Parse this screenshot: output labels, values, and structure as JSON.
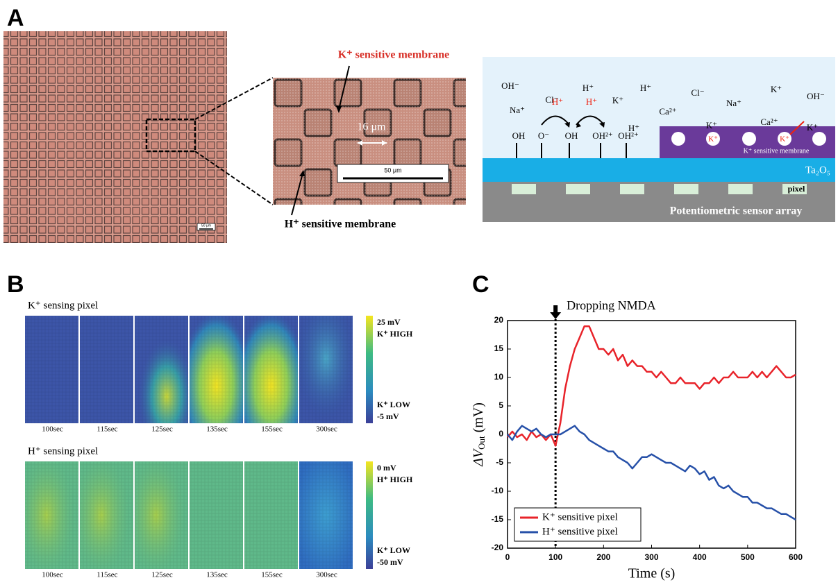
{
  "panel_a": {
    "label": "A",
    "overview_scale_bar": "50 μm",
    "inset": {
      "k_membrane": "K⁺ sensitive membrane",
      "h_membrane": "H⁺ sensitive membrane",
      "spacing": "16 μm",
      "scale_bar": "50 μm"
    },
    "schematic": {
      "ions": [
        "OH⁻",
        "Cl⁻",
        "H⁺",
        "K⁺",
        "H⁺",
        "Cl⁻",
        "Na⁺",
        "K⁺",
        "OH⁻",
        "Na⁺",
        "Ca²⁺",
        "H⁺",
        "K⁺",
        "Ca²⁺",
        "K⁺"
      ],
      "exchanged_ions": [
        "H⁺",
        "H⁺"
      ],
      "surface_groups": [
        "OH",
        "O⁻",
        "OH",
        "OH²⁺",
        "OH²⁺"
      ],
      "membrane_ions": [
        "K⁺",
        "K⁺"
      ],
      "membrane": "K⁺ sensitive membrane",
      "oxide": "Ta₂O₅",
      "pixel": "pixel",
      "substrate": "Potentiometric sensor array"
    }
  },
  "panel_b": {
    "label": "B",
    "rows": [
      {
        "title": "K⁺ sensing pixel",
        "times": [
          "100sec",
          "115sec",
          "125sec",
          "135sec",
          "155sec",
          "300sec"
        ],
        "scale_high": [
          "25 mV",
          "K⁺ HIGH"
        ],
        "scale_low": [
          "K⁺ LOW",
          "-5 mV"
        ]
      },
      {
        "title": "H⁺ sensing pixel",
        "times": [
          "100sec",
          "115sec",
          "125sec",
          "135sec",
          "155sec",
          "300sec"
        ],
        "scale_high": [
          "0 mV",
          "H⁺ HIGH"
        ],
        "scale_low": [
          "K⁺ LOW",
          "-50 mV"
        ]
      }
    ]
  },
  "chart_data": {
    "type": "line",
    "label": "C",
    "xlabel": "Time (s)",
    "ylabel": {
      "main": "ΔV",
      "sub": "Out",
      "unit": " (mV)"
    },
    "event": {
      "label": "Dropping NMDA",
      "x": 100
    },
    "x": [
      0,
      10,
      20,
      30,
      40,
      50,
      60,
      70,
      80,
      90,
      100,
      110,
      120,
      130,
      140,
      150,
      160,
      170,
      180,
      190,
      200,
      210,
      220,
      230,
      240,
      250,
      260,
      270,
      280,
      290,
      300,
      310,
      320,
      330,
      340,
      350,
      360,
      370,
      380,
      390,
      400,
      410,
      420,
      430,
      440,
      450,
      460,
      470,
      480,
      490,
      500,
      510,
      520,
      530,
      540,
      550,
      560,
      570,
      580,
      590,
      600
    ],
    "series": [
      {
        "name": "K⁺ sensitive pixel",
        "color": "#e8232a",
        "values": [
          -0.5,
          0.5,
          -0.5,
          0,
          -1,
          0.5,
          -0.5,
          0,
          -1,
          0,
          -2,
          2,
          8,
          12,
          15,
          17,
          19,
          19,
          17,
          15,
          15,
          14,
          15,
          13,
          14,
          12,
          13,
          12,
          12,
          11,
          11,
          10,
          11,
          10,
          9,
          9,
          10,
          9,
          9,
          9,
          8,
          9,
          9,
          10,
          9,
          10,
          10,
          11,
          10,
          10,
          10,
          11,
          10,
          11,
          10,
          11,
          12,
          11,
          10,
          10,
          10.5
        ]
      },
      {
        "name": "H⁺ sensitive pixel",
        "color": "#2650a8",
        "values": [
          0,
          -1,
          0.5,
          1.5,
          1,
          0.5,
          1,
          0,
          -0.5,
          0,
          0,
          0,
          0.5,
          1,
          1.5,
          0.5,
          0,
          -1,
          -1.5,
          -2,
          -2.5,
          -3,
          -3,
          -4,
          -4.5,
          -5,
          -6,
          -5,
          -4,
          -4,
          -3.5,
          -4,
          -4.5,
          -5,
          -5,
          -5.5,
          -6,
          -6.5,
          -5.5,
          -6,
          -7,
          -6.5,
          -8,
          -7.5,
          -9,
          -9.5,
          -9,
          -10,
          -10.5,
          -11,
          -11,
          -12,
          -12,
          -12.5,
          -13,
          -13,
          -13.5,
          -14,
          -14,
          -14.5,
          -15
        ]
      }
    ],
    "xlim": [
      0,
      600
    ],
    "ylim": [
      -20,
      20
    ],
    "xticks": [
      0,
      100,
      200,
      300,
      400,
      500,
      600
    ],
    "yticks": [
      -20,
      -15,
      -10,
      -5,
      0,
      5,
      10,
      15,
      20
    ],
    "legend": "lower left"
  }
}
